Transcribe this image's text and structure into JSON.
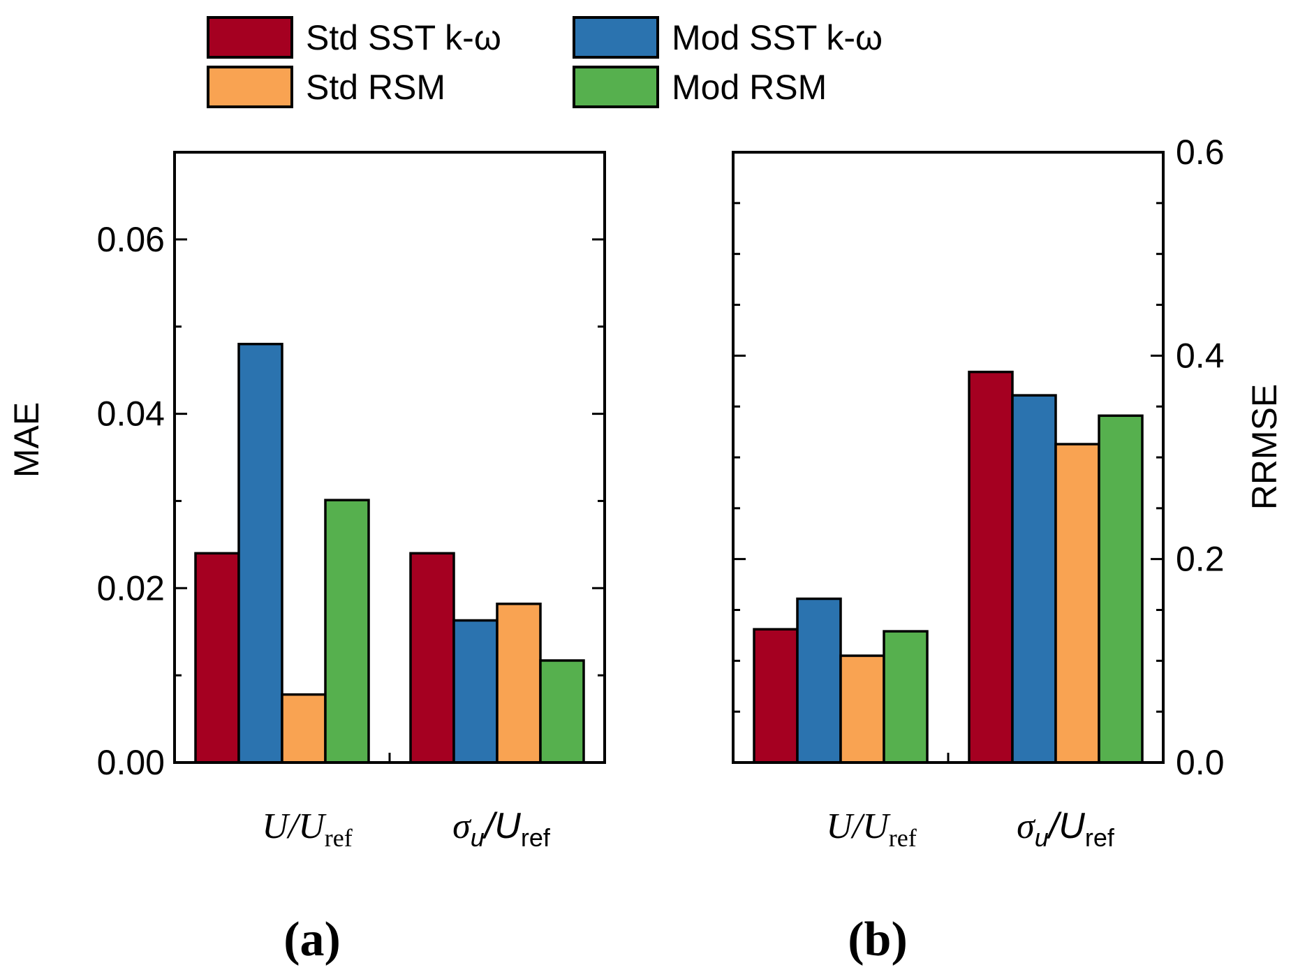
{
  "legend": {
    "items": [
      {
        "key": "std_sst",
        "label": "Std SST k-ω",
        "color": "#A50021"
      },
      {
        "key": "mod_sst",
        "label": "Mod SST k-ω",
        "color": "#2B73AF"
      },
      {
        "key": "std_rsm",
        "label": "Std RSM",
        "color": "#F9A352"
      },
      {
        "key": "mod_rsm",
        "label": "Mod RSM",
        "color": "#56B04E"
      }
    ]
  },
  "chart_data": [
    {
      "type": "bar",
      "panel_label": "(a)",
      "ylabel": "MAE",
      "ylim": [
        0,
        0.07
      ],
      "yticks": [
        "0.00",
        "0.02",
        "0.04",
        "0.06"
      ],
      "ytick_values": [
        0,
        0.02,
        0.04,
        0.06
      ],
      "categories": [
        {
          "main": "U/U",
          "sub": "ref"
        },
        {
          "main": "σ",
          "italic_sub": "u",
          "rest": "/U",
          "sub": "ref"
        }
      ],
      "series": [
        {
          "name": "Std SST k-ω",
          "values": [
            0.024,
            0.024
          ]
        },
        {
          "name": "Mod SST k-ω",
          "values": [
            0.048,
            0.0163
          ]
        },
        {
          "name": "Std RSM",
          "values": [
            0.0078,
            0.0182
          ]
        },
        {
          "name": "Mod RSM",
          "values": [
            0.0301,
            0.0117
          ]
        }
      ]
    },
    {
      "type": "bar",
      "panel_label": "(b)",
      "ylabel": "RRMSE",
      "ylim": [
        0,
        0.6
      ],
      "yticks": [
        "0.0",
        "0.2",
        "0.4",
        "0.6"
      ],
      "ytick_values": [
        0,
        0.2,
        0.4,
        0.6
      ],
      "categories": [
        {
          "main": "U/U",
          "sub": "ref"
        },
        {
          "main": "σ",
          "italic_sub": "u",
          "rest": "/U",
          "sub": "ref"
        }
      ],
      "series": [
        {
          "name": "Std SST k-ω",
          "values": [
            0.131,
            0.384
          ]
        },
        {
          "name": "Mod SST k-ω",
          "values": [
            0.161,
            0.361
          ]
        },
        {
          "name": "Std RSM",
          "values": [
            0.105,
            0.313
          ]
        },
        {
          "name": "Mod RSM",
          "values": [
            0.129,
            0.341
          ]
        }
      ]
    }
  ]
}
